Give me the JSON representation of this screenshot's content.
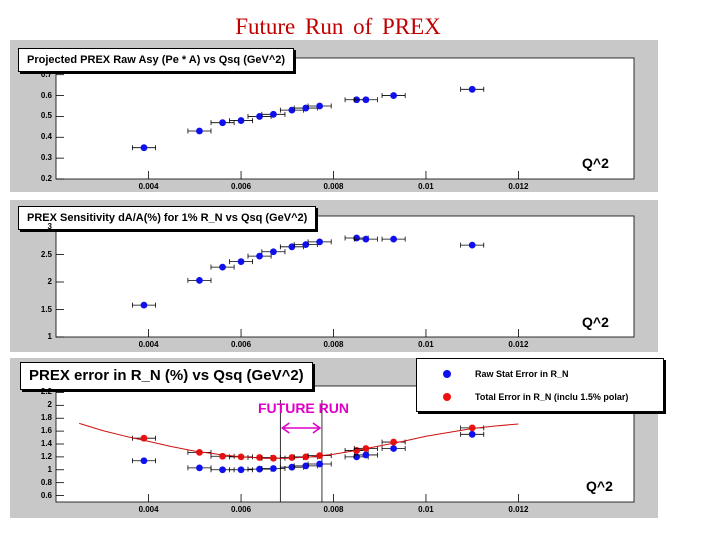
{
  "page": {
    "title": "Future Run of PREX"
  },
  "colors": {
    "blue": "#1010ee",
    "red": "#ee1010",
    "magenta": "#e000c8",
    "fit": "#d01010",
    "panel": "#c8c8c8",
    "frame": "#ffffff"
  },
  "annotation": {
    "future_run": "FUTURE RUN"
  },
  "chart_data": [
    {
      "type": "scatter",
      "title": "Projected PREX Raw Asy (Pe * A) vs Qsq (GeV^2)",
      "xlabel": "Q^2",
      "ylabel": "",
      "xlim": [
        0.0023,
        0.0145
      ],
      "ylim": [
        0.2,
        0.78
      ],
      "xticks": [
        "0.004",
        "0.006",
        "0.008",
        "0.01",
        "0.012"
      ],
      "xtick_values": [
        0.004,
        0.006,
        0.008,
        0.01,
        0.012
      ],
      "yticks": [
        "0.2",
        "0.3",
        "0.4",
        "0.5",
        "0.6",
        "0.7"
      ],
      "ytick_values": [
        0.2,
        0.3,
        0.4,
        0.5,
        0.6,
        0.7
      ],
      "series": [
        {
          "name": "Raw Asy",
          "color": "blue",
          "x": [
            0.0039,
            0.0051,
            0.0056,
            0.006,
            0.0064,
            0.0067,
            0.0071,
            0.0074,
            0.0077,
            0.0085,
            0.0087,
            0.0093,
            0.011
          ],
          "y": [
            0.35,
            0.43,
            0.47,
            0.48,
            0.5,
            0.51,
            0.53,
            0.54,
            0.55,
            0.58,
            0.58,
            0.6,
            0.63
          ],
          "xerr": 0.00025
        }
      ]
    },
    {
      "type": "scatter",
      "title": "PREX Sensitivity dA/A(%) for 1% R_N vs Qsq (GeV^2)",
      "xlabel": "Q^2",
      "ylabel": "",
      "xlim": [
        0.0023,
        0.0145
      ],
      "ylim": [
        1.0,
        3.2
      ],
      "xticks": [
        "0.004",
        "0.006",
        "0.008",
        "0.01",
        "0.012"
      ],
      "xtick_values": [
        0.004,
        0.006,
        0.008,
        0.01,
        0.012
      ],
      "yticks": [
        "1",
        "1.5",
        "2",
        "2.5",
        "3"
      ],
      "ytick_values": [
        1.0,
        1.5,
        2.0,
        2.5,
        3.0
      ],
      "series": [
        {
          "name": "Sensitivity",
          "color": "blue",
          "x": [
            0.0039,
            0.0051,
            0.0056,
            0.006,
            0.0064,
            0.0067,
            0.0071,
            0.0074,
            0.0077,
            0.0085,
            0.0087,
            0.0093,
            0.011
          ],
          "y": [
            1.58,
            2.03,
            2.27,
            2.37,
            2.47,
            2.55,
            2.64,
            2.68,
            2.73,
            2.8,
            2.78,
            2.78,
            2.67
          ],
          "xerr": 0.00025,
          "yerr": 0.06
        }
      ]
    },
    {
      "type": "scatter",
      "title": "PREX error in R_N (%) vs Qsq (GeV^2)",
      "xlabel": "Q^2",
      "ylabel": "",
      "xlim": [
        0.0023,
        0.0145
      ],
      "ylim": [
        0.5,
        2.3
      ],
      "xticks": [
        "0.004",
        "0.006",
        "0.008",
        "0.01",
        "0.012"
      ],
      "xtick_values": [
        0.004,
        0.006,
        0.008,
        0.01,
        0.012
      ],
      "yticks": [
        "0.6",
        "0.8",
        "1",
        "1.2",
        "1.4",
        "1.6",
        "1.8",
        "2",
        "2.2"
      ],
      "ytick_values": [
        0.6,
        0.8,
        1.0,
        1.2,
        1.4,
        1.6,
        1.8,
        2.0,
        2.2
      ],
      "legend": {
        "placement": "top-right",
        "entries": [
          "Raw Stat Error in R_N",
          "Total Error in R_N (inclu 1.5% polar)"
        ]
      },
      "future_run_range": [
        0.00685,
        0.00775
      ],
      "series": [
        {
          "name": "Raw Stat Error in R_N",
          "color": "blue",
          "x": [
            0.0039,
            0.0051,
            0.0056,
            0.006,
            0.0064,
            0.0067,
            0.0071,
            0.0074,
            0.0077,
            0.0085,
            0.0087,
            0.0093,
            0.011
          ],
          "y": [
            1.14,
            1.03,
            1.0,
            1.0,
            1.01,
            1.02,
            1.04,
            1.06,
            1.09,
            1.2,
            1.23,
            1.33,
            1.55
          ],
          "xerr": 0.00025
        },
        {
          "name": "Total Error in R_N (inclu 1.5% polar)",
          "color": "red",
          "x": [
            0.0039,
            0.0051,
            0.0056,
            0.006,
            0.0064,
            0.0067,
            0.0071,
            0.0074,
            0.0077,
            0.0085,
            0.0087,
            0.0093,
            0.011
          ],
          "y": [
            1.49,
            1.27,
            1.21,
            1.2,
            1.19,
            1.18,
            1.19,
            1.2,
            1.22,
            1.3,
            1.33,
            1.43,
            1.65
          ],
          "xerr": 0.00025
        },
        {
          "name": "fit",
          "color": "fit",
          "line": true,
          "x": [
            0.0025,
            0.003,
            0.0035,
            0.004,
            0.0045,
            0.005,
            0.0055,
            0.006,
            0.0065,
            0.007,
            0.0075,
            0.008,
            0.0085,
            0.009,
            0.0095,
            0.01,
            0.0105,
            0.011,
            0.0115,
            0.012
          ],
          "y": [
            1.72,
            1.61,
            1.52,
            1.44,
            1.36,
            1.29,
            1.24,
            1.2,
            1.18,
            1.18,
            1.2,
            1.24,
            1.3,
            1.37,
            1.44,
            1.52,
            1.58,
            1.64,
            1.68,
            1.71
          ]
        }
      ]
    }
  ]
}
